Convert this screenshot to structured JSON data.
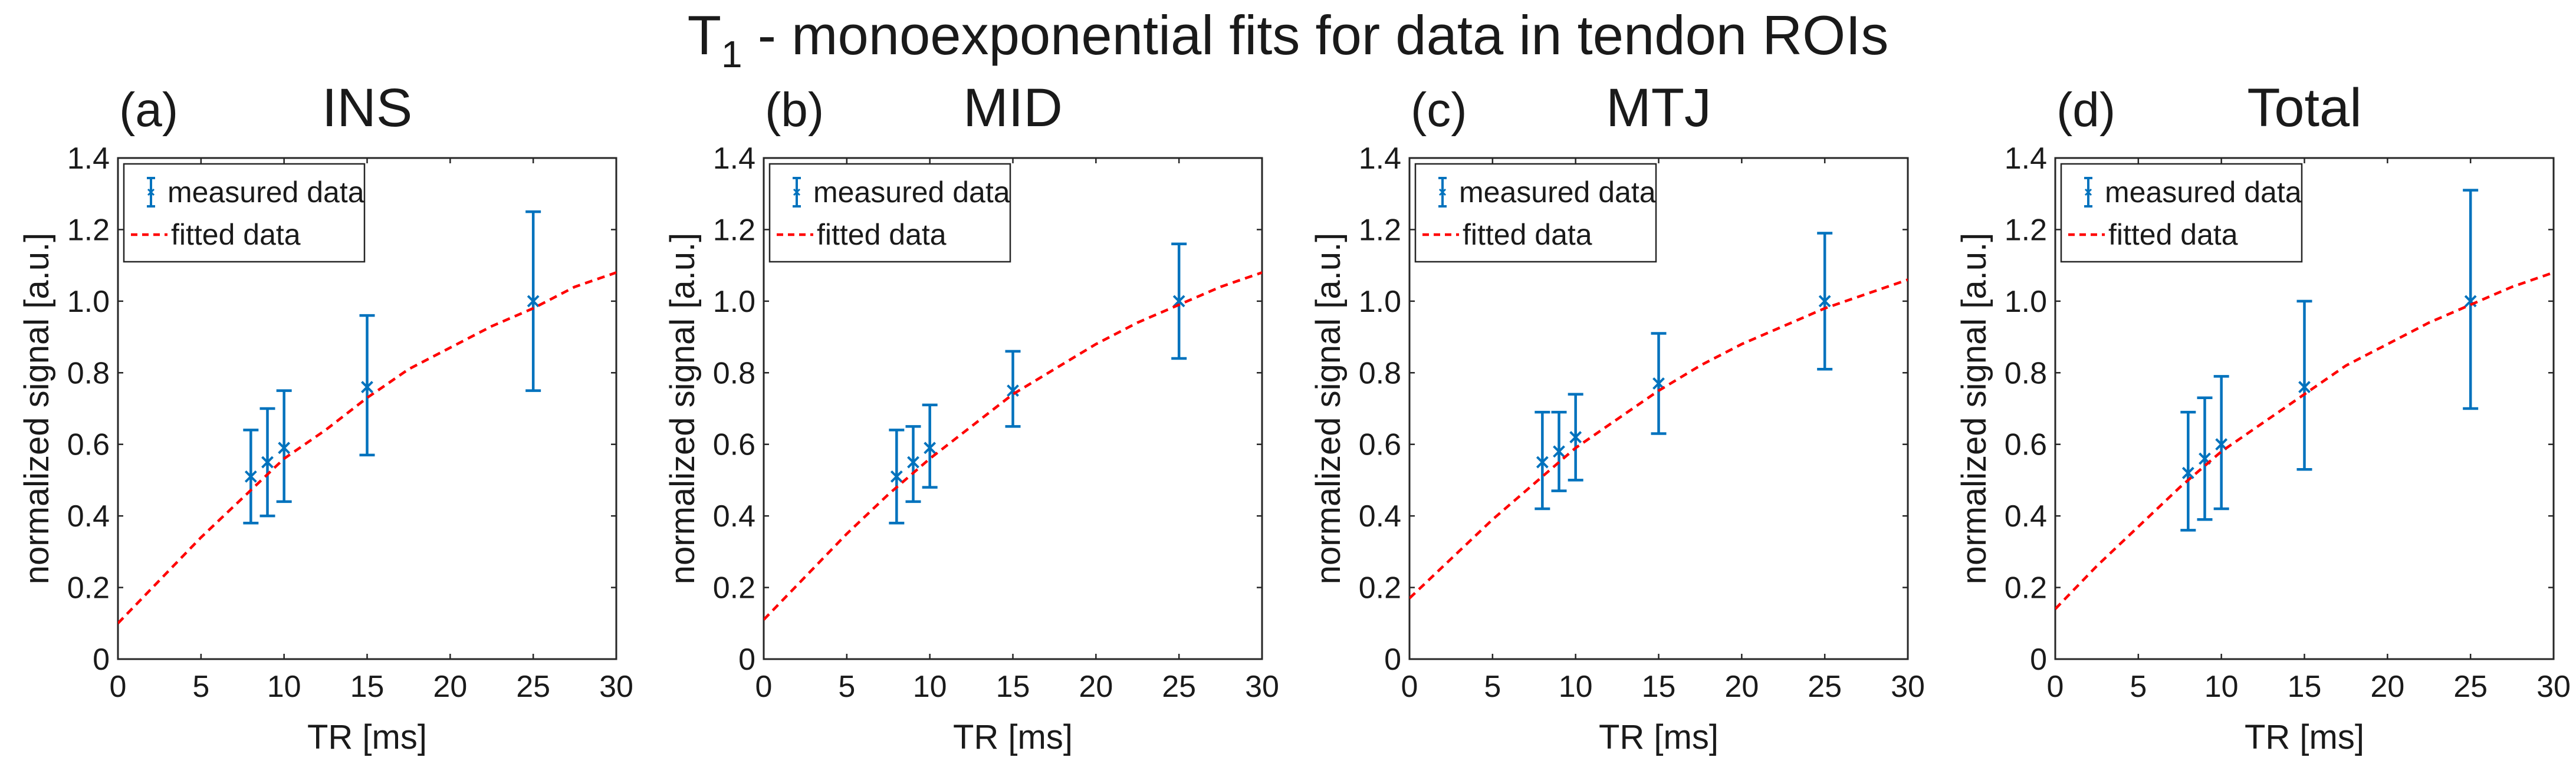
{
  "figure": {
    "title_main": "T",
    "title_sub": "1",
    "title_rest": " - monoexponential fits for data in tendon ROIs"
  },
  "chart_data": [
    {
      "type": "scatter",
      "panel_label": "(a)",
      "title": "INS",
      "xlabel": "TR [ms]",
      "ylabel": "normalized signal [a.u.]",
      "xlim": [
        0,
        30
      ],
      "ylim": [
        0,
        1.4
      ],
      "xticks": [
        0,
        5,
        10,
        15,
        20,
        25,
        30
      ],
      "xtick_labels": [
        "0",
        "5",
        "10",
        "15",
        "20",
        "25",
        "30"
      ],
      "yticks": [
        0,
        0.2,
        0.4,
        0.6,
        0.8,
        1.0,
        1.2,
        1.4
      ],
      "ytick_labels": [
        "0",
        "0.2",
        "0.4",
        "0.6",
        "0.8",
        "1.0",
        "1.2",
        "1.4"
      ],
      "legend": [
        "measured data",
        "fitted data"
      ],
      "legend_position": "top-left",
      "series": [
        {
          "name": "measured data",
          "kind": "errorbar",
          "color": "#0072bd",
          "x": [
            8,
            9,
            10,
            15,
            25
          ],
          "y": [
            0.51,
            0.55,
            0.59,
            0.76,
            1.0
          ],
          "err_low": [
            0.38,
            0.4,
            0.44,
            0.57,
            0.75
          ],
          "err_high": [
            0.64,
            0.7,
            0.75,
            0.96,
            1.25
          ]
        },
        {
          "name": "fitted data",
          "kind": "line",
          "style": "dashed",
          "color": "#ff0000",
          "x": [
            0,
            2.5,
            5,
            7.5,
            10,
            12.5,
            15,
            17.5,
            20,
            22.5,
            25,
            27.5,
            30
          ],
          "y": [
            0.1,
            0.22,
            0.34,
            0.45,
            0.56,
            0.64,
            0.73,
            0.81,
            0.87,
            0.93,
            0.98,
            1.04,
            1.08
          ]
        }
      ]
    },
    {
      "type": "scatter",
      "panel_label": "(b)",
      "title": "MID",
      "xlabel": "TR [ms]",
      "ylabel": "normalized signal [a.u.]",
      "xlim": [
        0,
        30
      ],
      "ylim": [
        0,
        1.4
      ],
      "xticks": [
        0,
        5,
        10,
        15,
        20,
        25,
        30
      ],
      "xtick_labels": [
        "0",
        "5",
        "10",
        "15",
        "20",
        "25",
        "30"
      ],
      "yticks": [
        0,
        0.2,
        0.4,
        0.6,
        0.8,
        1.0,
        1.2,
        1.4
      ],
      "ytick_labels": [
        "0",
        "0.2",
        "0.4",
        "0.6",
        "0.8",
        "1.0",
        "1.2",
        "1.4"
      ],
      "legend": [
        "measured data",
        "fitted data"
      ],
      "legend_position": "top-left",
      "series": [
        {
          "name": "measured data",
          "kind": "errorbar",
          "color": "#0072bd",
          "x": [
            8,
            9,
            10,
            15,
            25
          ],
          "y": [
            0.51,
            0.55,
            0.59,
            0.75,
            1.0
          ],
          "err_low": [
            0.38,
            0.44,
            0.48,
            0.65,
            0.84
          ],
          "err_high": [
            0.64,
            0.65,
            0.71,
            0.86,
            1.16
          ]
        },
        {
          "name": "fitted data",
          "kind": "line",
          "style": "dashed",
          "color": "#ff0000",
          "x": [
            0,
            2.5,
            5,
            7.5,
            10,
            12.5,
            15,
            17.5,
            20,
            22.5,
            25,
            27.5,
            30
          ],
          "y": [
            0.11,
            0.23,
            0.35,
            0.46,
            0.56,
            0.65,
            0.74,
            0.81,
            0.88,
            0.94,
            0.99,
            1.04,
            1.08
          ]
        }
      ]
    },
    {
      "type": "scatter",
      "panel_label": "(c)",
      "title": "MTJ",
      "xlabel": "TR [ms]",
      "ylabel": "normalized signal [a.u.]",
      "xlim": [
        0,
        30
      ],
      "ylim": [
        0,
        1.4
      ],
      "xticks": [
        0,
        5,
        10,
        15,
        20,
        25,
        30
      ],
      "xtick_labels": [
        "0",
        "5",
        "10",
        "15",
        "20",
        "25",
        "30"
      ],
      "yticks": [
        0,
        0.2,
        0.4,
        0.6,
        0.8,
        1.0,
        1.2,
        1.4
      ],
      "ytick_labels": [
        "0",
        "0.2",
        "0.4",
        "0.6",
        "0.8",
        "1.0",
        "1.2",
        "1.4"
      ],
      "legend": [
        "measured data",
        "fitted data"
      ],
      "legend_position": "top-left",
      "series": [
        {
          "name": "measured data",
          "kind": "errorbar",
          "color": "#0072bd",
          "x": [
            8,
            9,
            10,
            15,
            25
          ],
          "y": [
            0.55,
            0.58,
            0.62,
            0.77,
            1.0
          ],
          "err_low": [
            0.42,
            0.47,
            0.5,
            0.63,
            0.81
          ],
          "err_high": [
            0.69,
            0.69,
            0.74,
            0.91,
            1.19
          ]
        },
        {
          "name": "fitted data",
          "kind": "line",
          "style": "dashed",
          "color": "#ff0000",
          "x": [
            0,
            2.5,
            5,
            7.5,
            10,
            12.5,
            15,
            17.5,
            20,
            22.5,
            25,
            27.5,
            30
          ],
          "y": [
            0.17,
            0.28,
            0.39,
            0.49,
            0.59,
            0.67,
            0.75,
            0.82,
            0.88,
            0.93,
            0.98,
            1.02,
            1.06
          ]
        }
      ]
    },
    {
      "type": "scatter",
      "panel_label": "(d)",
      "title": "Total",
      "xlabel": "TR [ms]",
      "ylabel": "normalized signal [a.u.]",
      "xlim": [
        0,
        30
      ],
      "ylim": [
        0,
        1.4
      ],
      "xticks": [
        0,
        5,
        10,
        15,
        20,
        25,
        30
      ],
      "xtick_labels": [
        "0",
        "5",
        "10",
        "15",
        "20",
        "25",
        "30"
      ],
      "yticks": [
        0,
        0.2,
        0.4,
        0.6,
        0.8,
        1.0,
        1.2,
        1.4
      ],
      "ytick_labels": [
        "0",
        "0.2",
        "0.4",
        "0.6",
        "0.8",
        "1.0",
        "1.2",
        "1.4"
      ],
      "legend": [
        "measured data",
        "fitted data"
      ],
      "legend_position": "top-left",
      "series": [
        {
          "name": "measured data",
          "kind": "errorbar",
          "color": "#0072bd",
          "x": [
            8,
            9,
            10,
            15,
            25
          ],
          "y": [
            0.52,
            0.56,
            0.6,
            0.76,
            1.0
          ],
          "err_low": [
            0.36,
            0.39,
            0.42,
            0.53,
            0.7
          ],
          "err_high": [
            0.69,
            0.73,
            0.79,
            1.0,
            1.31
          ]
        },
        {
          "name": "fitted data",
          "kind": "line",
          "style": "dashed",
          "color": "#ff0000",
          "x": [
            0,
            2.5,
            5,
            7.5,
            10,
            12.5,
            15,
            17.5,
            20,
            22.5,
            25,
            27.5,
            30
          ],
          "y": [
            0.14,
            0.26,
            0.37,
            0.48,
            0.58,
            0.66,
            0.74,
            0.82,
            0.88,
            0.94,
            0.99,
            1.04,
            1.08
          ]
        }
      ]
    }
  ]
}
